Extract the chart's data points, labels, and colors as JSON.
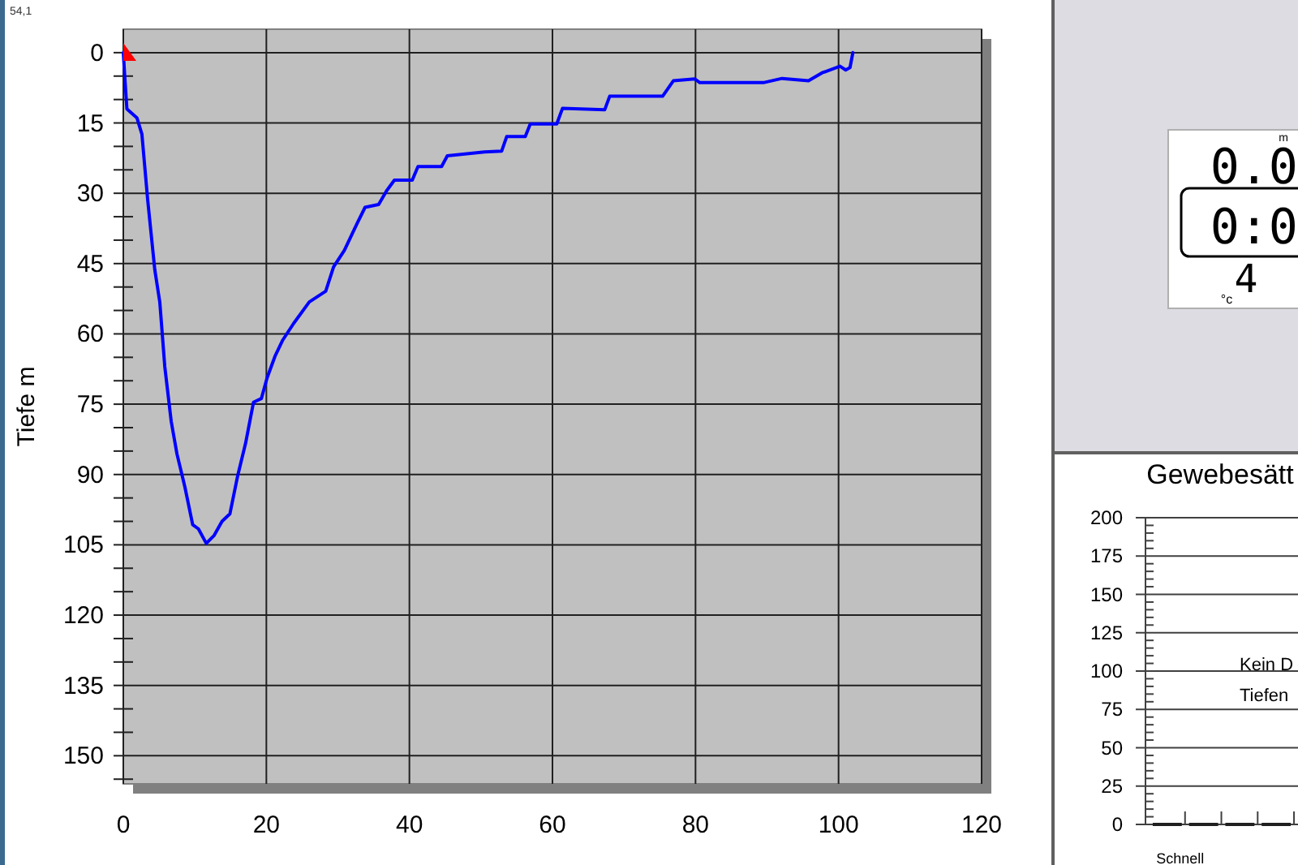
{
  "chart_data": [
    {
      "type": "line",
      "ylabel": "Tiefe m",
      "annotations": [
        "54,1"
      ],
      "xlim": [
        0,
        120
      ],
      "ylim": [
        156,
        -5
      ],
      "xticks": [
        0,
        20,
        40,
        60,
        80,
        100,
        120
      ],
      "yticks": [
        0,
        {
          "value": 5,
          "label": null
        },
        {
          "value": 10,
          "label": null
        },
        15,
        {
          "value": 20,
          "label": null
        },
        {
          "value": 25,
          "label": null
        },
        30,
        {
          "value": 35,
          "label": null
        },
        {
          "value": 40,
          "label": null
        },
        45,
        {
          "value": 50,
          "label": null
        },
        {
          "value": 55,
          "label": null
        },
        60,
        {
          "value": 65,
          "label": null
        },
        {
          "value": 70,
          "label": null
        },
        75,
        {
          "value": 80,
          "label": null
        },
        {
          "value": 85,
          "label": null
        },
        90,
        {
          "value": 95,
          "label": null
        },
        {
          "value": 100,
          "label": null
        },
        105,
        {
          "value": 110,
          "label": null
        },
        {
          "value": 115,
          "label": null
        },
        120,
        {
          "value": 125,
          "label": null
        },
        {
          "value": 130,
          "label": null
        },
        135,
        {
          "value": 140,
          "label": null
        },
        {
          "value": 145,
          "label": null
        },
        150,
        {
          "value": 155,
          "label": null
        }
      ],
      "grid": true,
      "x": [
        0,
        0.2,
        0.5,
        1.9,
        2.6,
        3.4,
        4.4,
        5.1,
        5.8,
        6.7,
        7.5,
        8.6,
        9.7,
        10.5,
        11.6,
        12.7,
        13.8,
        14.9,
        16,
        17.1,
        18.2,
        19.3,
        20.1,
        21.2,
        22.3,
        23.8,
        26,
        28.3,
        29.4,
        30.9,
        32.7,
        33.8,
        35.7,
        36.8,
        37.9,
        40.4,
        41.2,
        44.5,
        45.3,
        50.5,
        52.9,
        53.6,
        56.2,
        56.9,
        60.6,
        61.4,
        67.3,
        68,
        75.4,
        76.9,
        79.9,
        80.6,
        89.5,
        92.1,
        95.8,
        97.7,
        100.2,
        101,
        101.6,
        102
      ],
      "series": [
        {
          "color": "#0000ff",
          "values": [
            0,
            5,
            12,
            13.9,
            17.4,
            31.3,
            46.3,
            53.2,
            67,
            78.7,
            85.6,
            92.6,
            100.7,
            101.6,
            104.7,
            103,
            100,
            98.4,
            90.2,
            83.3,
            74.6,
            73.8,
            69.4,
            64.8,
            61.3,
            57.8,
            53.2,
            50.9,
            45.7,
            42.2,
            36.4,
            33,
            32.4,
            29.5,
            27.2,
            27.2,
            24.3,
            24.3,
            22,
            21.2,
            21,
            17.9,
            17.9,
            15.2,
            15.2,
            11.9,
            12.2,
            9.3,
            9.3,
            6,
            5.6,
            6.4,
            6.4,
            5.5,
            6,
            4.3,
            2.9,
            3.7,
            3.2,
            0
          ]
        }
      ]
    },
    {
      "type": "other",
      "annotations": [
        "0.0",
        "m",
        "0:0",
        "4",
        "°c"
      ]
    },
    {
      "type": "bar",
      "title": "Gewebesätt",
      "annotations": [
        "Kein D",
        "Tiefen"
      ],
      "categories": [
        "Schnell",
        null,
        null,
        null
      ],
      "values": [
        0,
        0,
        0,
        0
      ],
      "color": "#202020",
      "ylim": [
        0,
        200
      ],
      "yticks": [
        0,
        {
          "value": 5,
          "label": null
        },
        {
          "value": 10,
          "label": null
        },
        {
          "value": 15,
          "label": null
        },
        {
          "value": 20,
          "label": null
        },
        25,
        {
          "value": 30,
          "label": null
        },
        {
          "value": 35,
          "label": null
        },
        {
          "value": 40,
          "label": null
        },
        {
          "value": 45,
          "label": null
        },
        50,
        {
          "value": 55,
          "label": null
        },
        {
          "value": 60,
          "label": null
        },
        {
          "value": 65,
          "label": null
        },
        {
          "value": 70,
          "label": null
        },
        75,
        {
          "value": 80,
          "label": null
        },
        {
          "value": 85,
          "label": null
        },
        {
          "value": 90,
          "label": null
        },
        {
          "value": 95,
          "label": null
        },
        100,
        {
          "value": 105,
          "label": null
        },
        {
          "value": 110,
          "label": null
        },
        {
          "value": 115,
          "label": null
        },
        {
          "value": 120,
          "label": null
        },
        125,
        {
          "value": 130,
          "label": null
        },
        {
          "value": 135,
          "label": null
        },
        {
          "value": 140,
          "label": null
        },
        {
          "value": 145,
          "label": null
        },
        150,
        {
          "value": 155,
          "label": null
        },
        {
          "value": 160,
          "label": null
        },
        {
          "value": 165,
          "label": null
        },
        {
          "value": 170,
          "label": null
        },
        175,
        {
          "value": 180,
          "label": null
        },
        {
          "value": 185,
          "label": null
        },
        {
          "value": 190,
          "label": null
        },
        {
          "value": 195,
          "label": null
        },
        200
      ],
      "grid": "y"
    }
  ]
}
